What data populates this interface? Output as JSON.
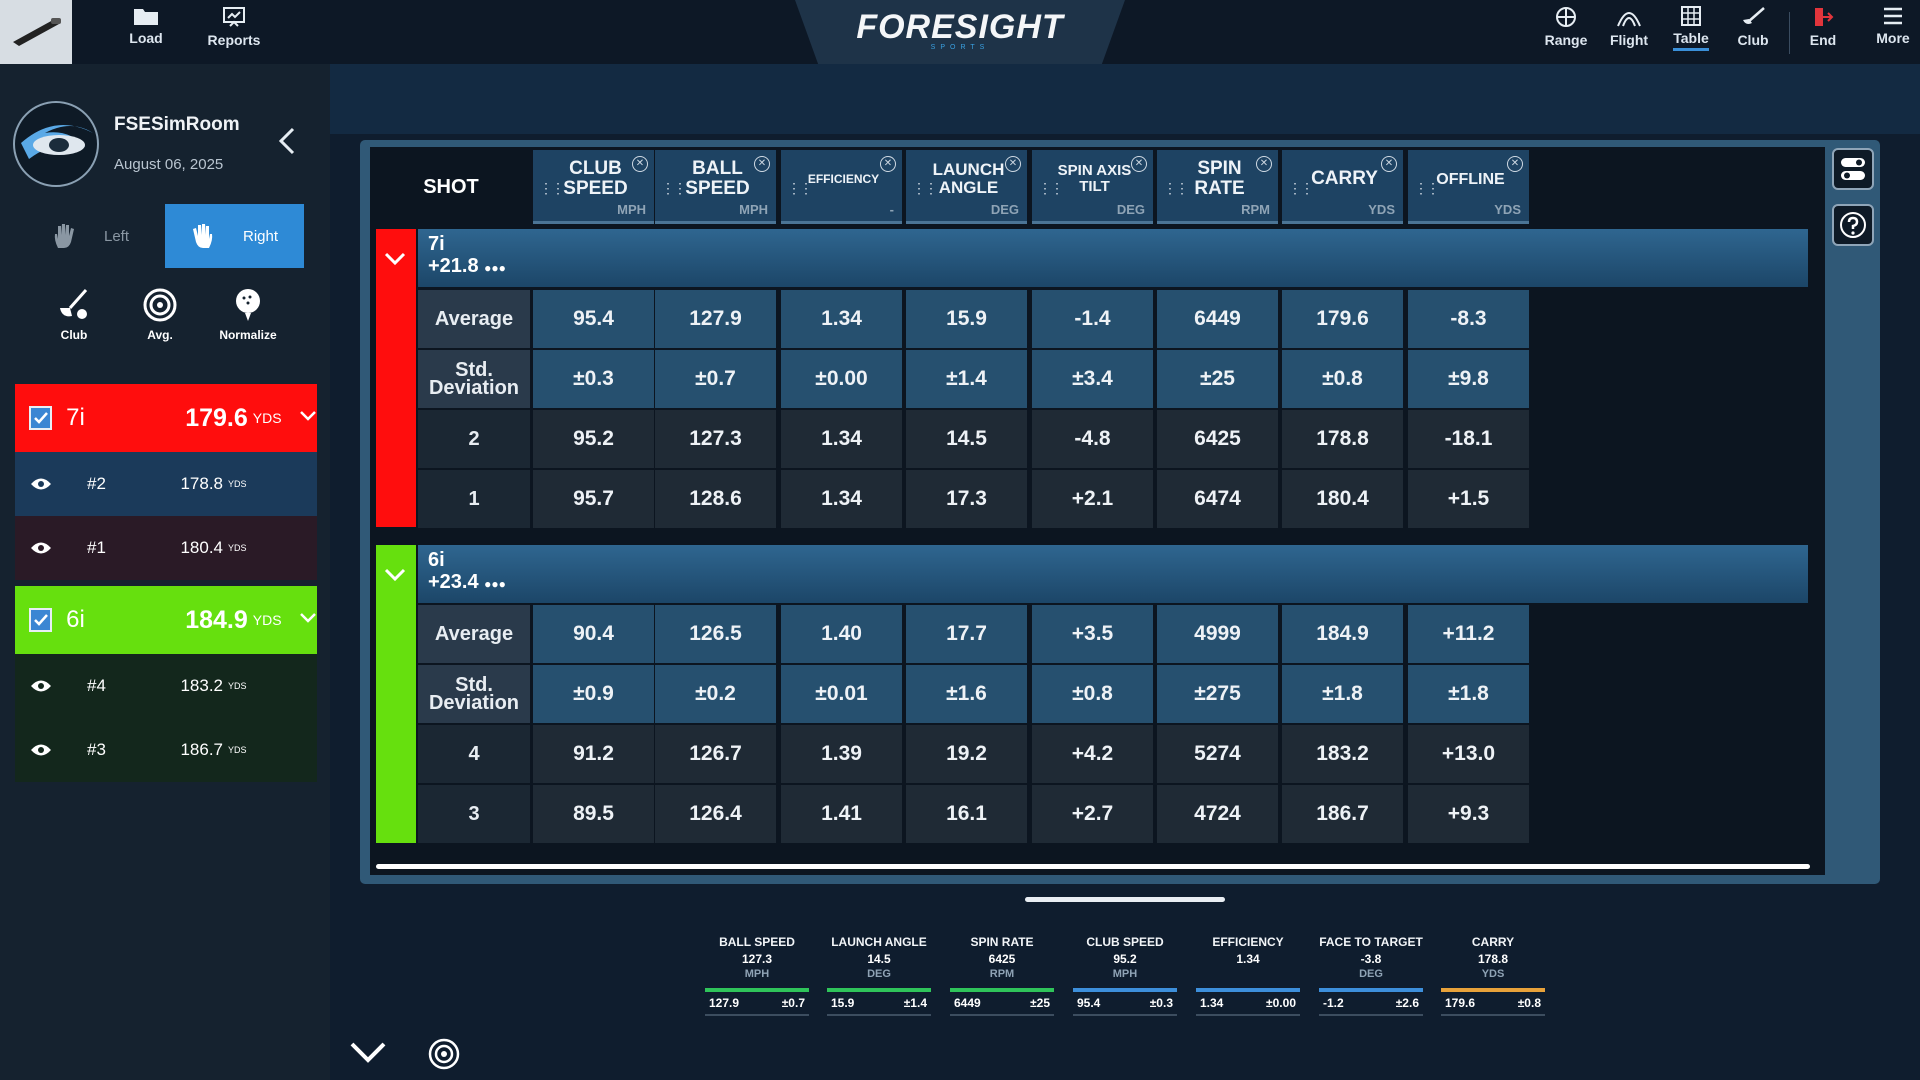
{
  "topbar": {
    "left_buttons": [
      {
        "label": "Load",
        "icon": "folder-icon"
      },
      {
        "label": "Reports",
        "icon": "reports-icon"
      }
    ],
    "logo": {
      "text": "FORESIGHT",
      "sub": "SPORTS"
    },
    "right_buttons": [
      {
        "label": "Range",
        "icon": "range-icon"
      },
      {
        "label": "Flight",
        "icon": "flight-icon"
      },
      {
        "label": "Table",
        "icon": "table-icon",
        "active": true
      },
      {
        "label": "Club",
        "icon": "club-icon"
      },
      {
        "label": "End",
        "icon": "end-icon"
      },
      {
        "label": "More",
        "icon": "menu-icon"
      }
    ]
  },
  "user": {
    "name": "FSESimRoom",
    "date": "August 06, 2025"
  },
  "hand": {
    "left": "Left",
    "right": "Right",
    "selected": "Right"
  },
  "tools": [
    {
      "label": "Club",
      "icon": "club-tool-icon"
    },
    {
      "label": "Avg.",
      "icon": "average-icon"
    },
    {
      "label": "Normalize",
      "icon": "normalize-icon"
    }
  ],
  "groups": [
    {
      "club": "7i",
      "carry": "179.6",
      "unit": "YDS",
      "color": "#ff0d0d",
      "offset": "+21.8",
      "shots": [
        {
          "num": "#2",
          "carry": "178.8",
          "unit": "YDS"
        },
        {
          "num": "#1",
          "carry": "180.4",
          "unit": "YDS"
        }
      ],
      "table": {
        "average": {
          "label": "Average",
          "values": [
            "95.4",
            "127.9",
            "1.34",
            "15.9",
            "-1.4",
            "6449",
            "179.6",
            "-8.3"
          ]
        },
        "std": {
          "label1": "Std.",
          "label2": "Deviation",
          "values": [
            "±0.3",
            "±0.7",
            "±0.00",
            "±1.4",
            "±3.4",
            "±25",
            "±0.8",
            "±9.8"
          ]
        },
        "rows": [
          {
            "shot": "2",
            "values": [
              "95.2",
              "127.3",
              "1.34",
              "14.5",
              "-4.8",
              "6425",
              "178.8",
              "-18.1"
            ]
          },
          {
            "shot": "1",
            "values": [
              "95.7",
              "128.6",
              "1.34",
              "17.3",
              "+2.1",
              "6474",
              "180.4",
              "+1.5"
            ]
          }
        ]
      }
    },
    {
      "club": "6i",
      "carry": "184.9",
      "unit": "YDS",
      "color": "#66e00e",
      "offset": "+23.4",
      "shots": [
        {
          "num": "#4",
          "carry": "183.2",
          "unit": "YDS"
        },
        {
          "num": "#3",
          "carry": "186.7",
          "unit": "YDS"
        }
      ],
      "table": {
        "average": {
          "label": "Average",
          "values": [
            "90.4",
            "126.5",
            "1.40",
            "17.7",
            "+3.5",
            "4999",
            "184.9",
            "+11.2"
          ]
        },
        "std": {
          "label1": "Std.",
          "label2": "Deviation",
          "values": [
            "±0.9",
            "±0.2",
            "±0.01",
            "±1.6",
            "±0.8",
            "±275",
            "±1.8",
            "±1.8"
          ]
        },
        "rows": [
          {
            "shot": "4",
            "values": [
              "91.2",
              "126.7",
              "1.39",
              "19.2",
              "+4.2",
              "5274",
              "183.2",
              "+13.0"
            ]
          },
          {
            "shot": "3",
            "values": [
              "89.5",
              "126.4",
              "1.41",
              "16.1",
              "+2.7",
              "4724",
              "186.7",
              "+9.3"
            ]
          }
        ]
      }
    }
  ],
  "table_header": {
    "shot_label": "SHOT",
    "columns": [
      {
        "name": "CLUB SPEED",
        "unit": "MPH"
      },
      {
        "name": "BALL SPEED",
        "unit": "MPH"
      },
      {
        "name": "EFFICIENCY",
        "unit": "-"
      },
      {
        "name": "LAUNCH ANGLE",
        "unit": "DEG"
      },
      {
        "name": "SPIN AXIS TILT",
        "unit": "DEG"
      },
      {
        "name": "SPIN RATE",
        "unit": "RPM"
      },
      {
        "name": "CARRY",
        "unit": "YDS"
      },
      {
        "name": "OFFLINE",
        "unit": "YDS"
      }
    ]
  },
  "metrics": [
    {
      "name": "BALL SPEED",
      "value": "127.3",
      "unit": "MPH",
      "avg": "127.9",
      "std": "±0.7",
      "color": "#2fc45a"
    },
    {
      "name": "LAUNCH ANGLE",
      "value": "14.5",
      "unit": "DEG",
      "avg": "15.9",
      "std": "±1.4",
      "color": "#2fc45a"
    },
    {
      "name": "SPIN RATE",
      "value": "6425",
      "unit": "RPM",
      "avg": "6449",
      "std": "±25",
      "color": "#2fc45a"
    },
    {
      "name": "CLUB SPEED",
      "value": "95.2",
      "unit": "MPH",
      "avg": "95.4",
      "std": "±0.3",
      "color": "#3d8fdb"
    },
    {
      "name": "EFFICIENCY",
      "value": "1.34",
      "unit": "",
      "avg": "1.34",
      "std": "±0.00",
      "color": "#3d8fdb"
    },
    {
      "name": "FACE TO TARGET",
      "value": "-3.8",
      "unit": "DEG",
      "avg": "-1.2",
      "std": "±2.6",
      "color": "#3d8fdb"
    },
    {
      "name": "CARRY",
      "value": "178.8",
      "unit": "YDS",
      "avg": "179.6",
      "std": "±0.8",
      "color": "#e8a23a"
    }
  ]
}
